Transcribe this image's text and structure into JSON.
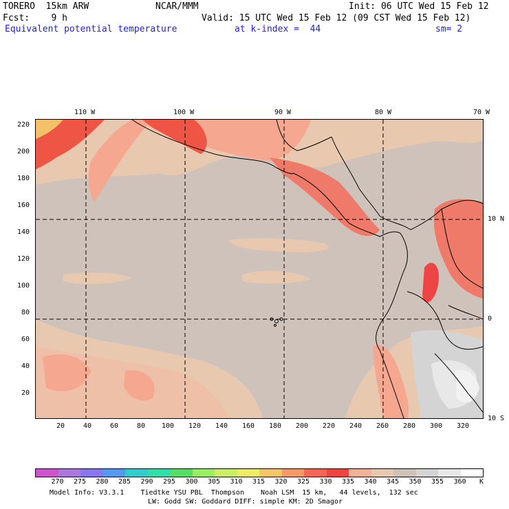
{
  "header": {
    "model": "TORERO  15km ARW",
    "org": "NCAR/MMM",
    "init": "Init: 06 UTC Wed 15 Feb 12",
    "fcst": "Fcst:    9 h",
    "valid": "Valid: 15 UTC Wed 15 Feb 12 (09 CST Wed 15 Feb 12)",
    "field": "Equivalent potential temperature",
    "level": "at k-index =  44",
    "smooth": "sm= 2"
  },
  "map": {
    "lon_labels": [
      "110 W",
      "100 W",
      "90 W",
      "80 W",
      "70 W"
    ],
    "lat_labels": [
      "10 N",
      "0",
      "10 S"
    ],
    "y_ticks": [
      "220",
      "200",
      "180",
      "160",
      "140",
      "120",
      "100",
      "80",
      "60",
      "40",
      "20"
    ],
    "x_ticks": [
      "20",
      "40",
      "60",
      "80",
      "100",
      "120",
      "140",
      "160",
      "180",
      "200",
      "220",
      "240",
      "260",
      "280",
      "300",
      "320"
    ]
  },
  "colorbar": {
    "levels": [
      "270",
      "275",
      "280",
      "285",
      "290",
      "295",
      "300",
      "305",
      "310",
      "315",
      "320",
      "325",
      "330",
      "335",
      "340",
      "345",
      "350",
      "355",
      "360"
    ],
    "unit": "K",
    "colors": [
      "#cc55cc",
      "#aa77dd",
      "#8877ee",
      "#5599ee",
      "#33cccc",
      "#33ddaa",
      "#55dd66",
      "#99ee66",
      "#ccee66",
      "#eeee66",
      "#f5c566",
      "#f59966",
      "#f56655",
      "#ee4444",
      "#f5b09a",
      "#e8c9b0",
      "#cfc2bb",
      "#d4d4d4",
      "#e8e8e8",
      "#ffffff"
    ]
  },
  "footer": {
    "line1": "Model Info: V3.3.1    Tiedtke YSU PBL  Thompson    Noah LSM  15 km,   44 levels,  132 sec",
    "line2": "LW: Godd SW: Goddard DIFF: simple KM: 2D Smagor"
  }
}
